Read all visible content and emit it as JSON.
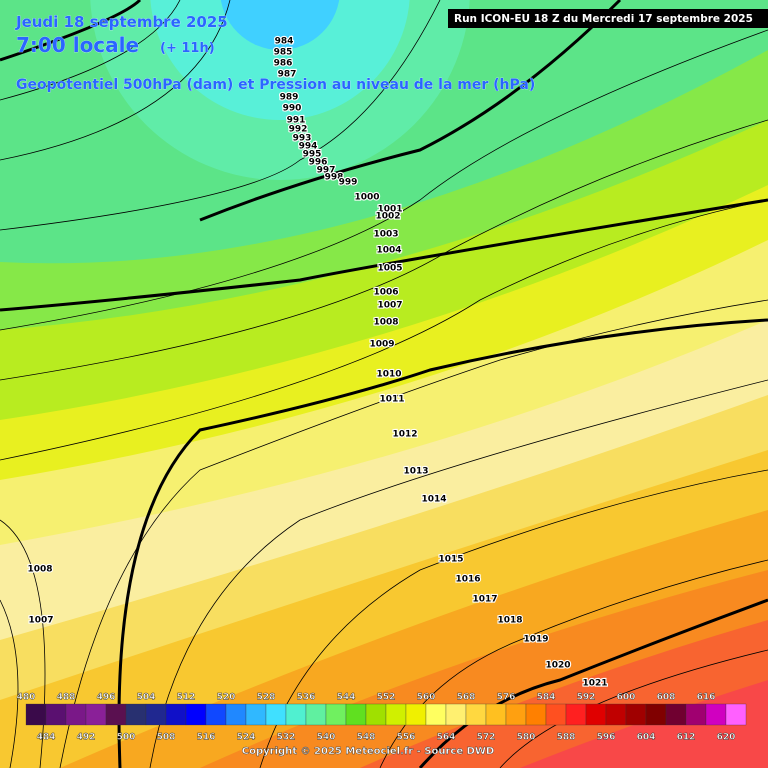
{
  "header": {
    "date": "Jeudi 18 septembre 2025",
    "time": "7:00 locale",
    "lead": "(+ 11h)",
    "subtitle": "Geopotentiel 500hPa (dam) et Pression au niveau de la mer (hPa)",
    "run": "Run ICON-EU 18 Z du Mercredi 17 septembre 2025"
  },
  "isobar_labels": [
    984,
    985,
    986,
    987,
    989,
    990,
    991,
    992,
    993,
    994,
    995,
    996,
    997,
    998,
    999,
    1000,
    1001,
    1002,
    1003,
    1004,
    1005,
    1006,
    1007,
    1008,
    1009,
    1010,
    1011,
    1012,
    1013,
    1014,
    1015,
    1016,
    1017,
    1018,
    1019,
    1020,
    1021,
    1008,
    1007
  ],
  "scale": {
    "top_labels": [
      480,
      488,
      496,
      504,
      512,
      520,
      528,
      536,
      544,
      552,
      560,
      568,
      576,
      584,
      592,
      600,
      608,
      616
    ],
    "bottom_labels": [
      484,
      492,
      500,
      508,
      516,
      524,
      532,
      540,
      548,
      556,
      564,
      572,
      580,
      588,
      596,
      604,
      612,
      620
    ],
    "colors": [
      "#3a0a4a",
      "#5a1070",
      "#7a1888",
      "#8a2098",
      "#5a1050",
      "#283070",
      "#202890",
      "#1010c8",
      "#0000ff",
      "#1048ff",
      "#2088ff",
      "#30b8ff",
      "#40e0ff",
      "#50f0d0",
      "#60f0a0",
      "#70f060",
      "#60e020",
      "#a0e000",
      "#d0f000",
      "#f0f000",
      "#ffff60",
      "#fff070",
      "#ffd840",
      "#ffc020",
      "#ffa010",
      "#ff8000",
      "#ff5020",
      "#ff2020",
      "#e00000",
      "#c00000",
      "#a00000",
      "#800000",
      "#700030",
      "#a00070",
      "#d000c0",
      "#ff60ff"
    ]
  },
  "footer": "Copyright © 2025 Meteociel.fr - Source DWD"
}
